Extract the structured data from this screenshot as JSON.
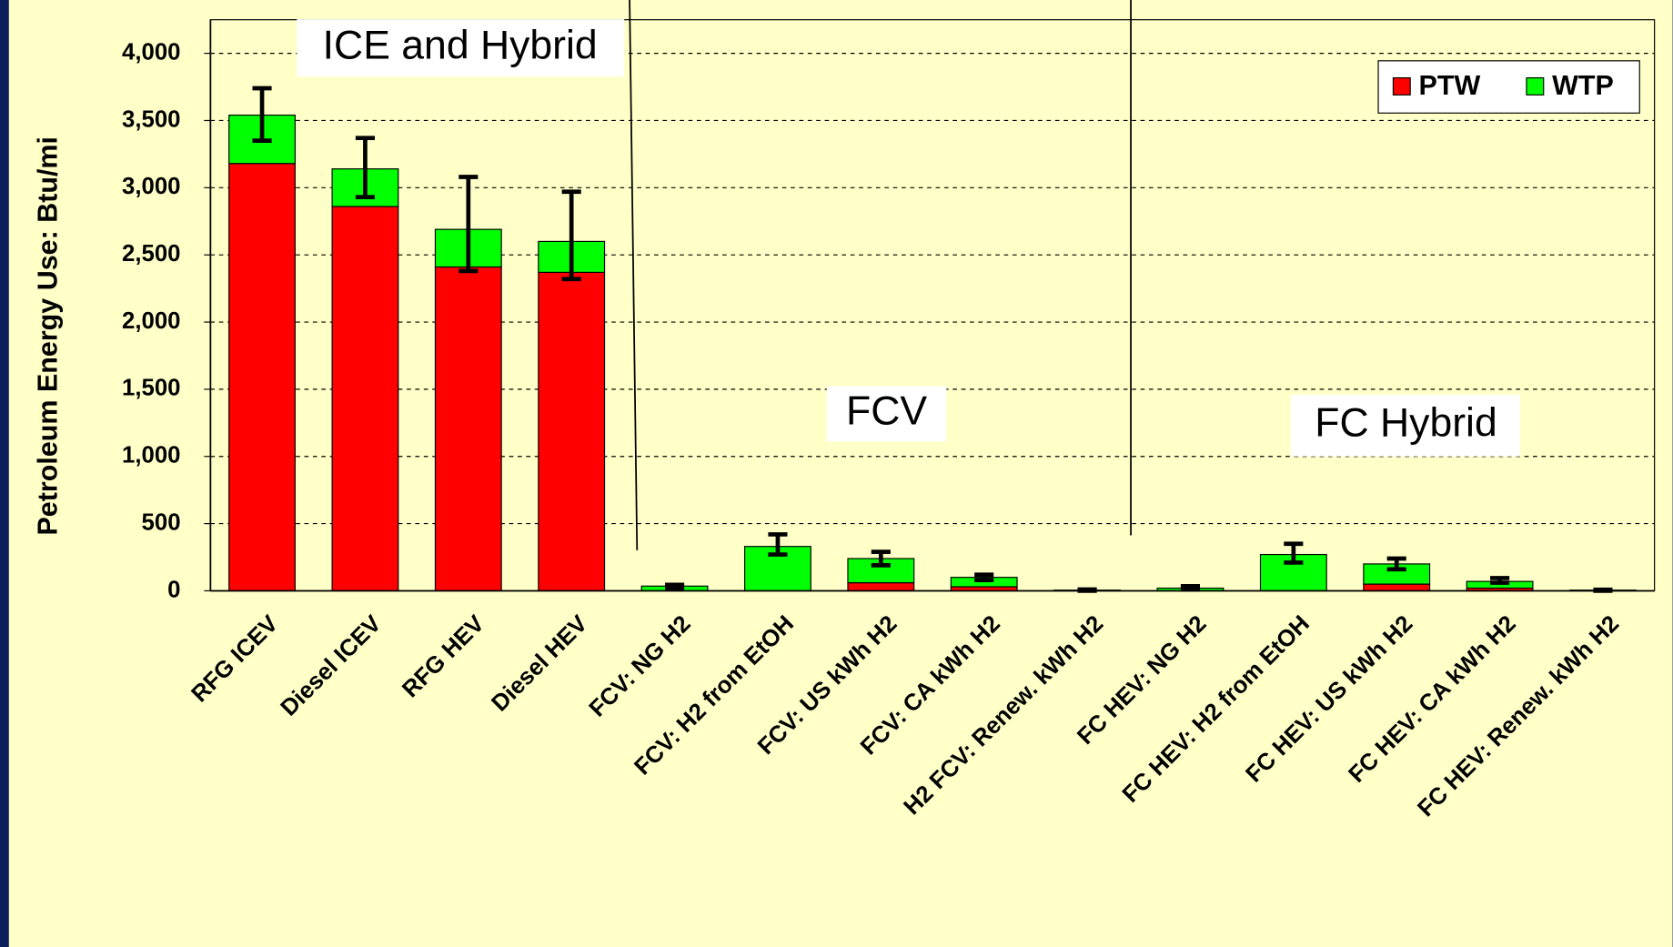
{
  "chart_data": {
    "type": "stacked_bar",
    "y_label": "Petroleum Energy Use: Btu/mi",
    "categories": [
      "RFG ICEV",
      "Diesel ICEV",
      "RFG HEV",
      "Diesel HEV",
      "FCV: NG H2",
      "FCV: H2 from EtOH",
      "FCV: US kWh H2",
      "FCV: CA kWh H2",
      "H2 FCV: Renew. kWh H2",
      "FC HEV: NG H2",
      "FC HEV: H2 from EtOH",
      "FC HEV: US kWh H2",
      "FC HEV: CA kWh H2",
      "FC HEV: Renew. kWh H2"
    ],
    "series": [
      {
        "name": "PTW",
        "color": "#ff0000",
        "values": [
          3180,
          2860,
          2410,
          2370,
          0,
          0,
          60,
          30,
          0,
          0,
          0,
          50,
          20,
          0
        ]
      },
      {
        "name": "WTP",
        "color": "#00ff00",
        "values": [
          360,
          280,
          280,
          230,
          35,
          330,
          180,
          70,
          5,
          20,
          270,
          150,
          50,
          5
        ]
      }
    ],
    "error_bars": {
      "low": [
        3350,
        2930,
        2380,
        2320,
        20,
        270,
        190,
        80,
        0,
        10,
        210,
        160,
        60,
        0
      ],
      "high": [
        3740,
        3370,
        3080,
        2970,
        45,
        420,
        290,
        120,
        10,
        35,
        350,
        240,
        95,
        8
      ]
    },
    "ylim": [
      0,
      4250
    ],
    "yticks": [
      0,
      {
        "value": 500,
        "label": "500"
      },
      {
        "value": 1000,
        "label": "1,000"
      },
      {
        "value": 1500,
        "label": "1,500"
      },
      {
        "value": 2000,
        "label": "2,000"
      },
      {
        "value": 2500,
        "label": "2,500"
      },
      {
        "value": 3000,
        "label": "3,000"
      },
      {
        "value": 3500,
        "label": "3,500"
      },
      {
        "value": 4000,
        "label": "4,000"
      }
    ],
    "grid": true,
    "legend": "upper right",
    "annotations": [
      "ICE and Hybrid",
      "FCV",
      "FC Hybrid"
    ]
  }
}
